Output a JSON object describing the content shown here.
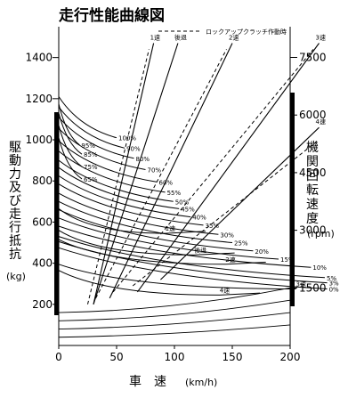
{
  "chart_data": {
    "type": "line",
    "title": "走行性能曲線図",
    "legend_label": "ロックアップクラッチ作動時",
    "xlabel": "車　速",
    "xunit": "(km/h)",
    "ylabel_left": [
      "駆",
      "動",
      "力",
      "及",
      "び",
      "走",
      "行",
      "抵",
      "抗"
    ],
    "yunit_left": "(kg)",
    "ylabel_right": [
      "機",
      "関",
      "回",
      "転",
      "速",
      "度"
    ],
    "yunit_right": "(rpm)",
    "x_ticks": [
      "0",
      "50",
      "100",
      "150",
      "200"
    ],
    "x_tick_values": [
      0,
      50,
      100,
      150,
      200
    ],
    "y_ticks_left": [
      "200",
      "400",
      "600",
      "800",
      "1000",
      "1200",
      "1400"
    ],
    "y_tick_values_left": [
      200,
      400,
      600,
      800,
      1000,
      1200,
      1400
    ],
    "y_ticks_right": [
      "1500",
      "3000",
      "4500",
      "6000",
      "7500"
    ],
    "y_tick_values_right": [
      1500,
      3000,
      4500,
      6000,
      7500
    ],
    "xlim": [
      0,
      200
    ],
    "ylim": [
      0,
      1550
    ],
    "rpm_lim": [
      0,
      8300
    ],
    "gear_lines": [
      {
        "label": "1速",
        "points": [
          [
            30,
            200
          ],
          [
            82,
            1470
          ]
        ]
      },
      {
        "label": "後退",
        "points": [
          [
            30,
            200
          ],
          [
            103,
            1470
          ]
        ]
      },
      {
        "label": "2速",
        "points": [
          [
            44,
            230
          ],
          [
            150,
            1470
          ]
        ]
      },
      {
        "label": "3速",
        "points": [
          [
            68,
            260
          ],
          [
            225,
            1470
          ]
        ]
      },
      {
        "label": "4速",
        "points": [
          [
            88,
            320
          ],
          [
            225,
            1060
          ]
        ]
      }
    ],
    "lockup_lines": [
      [
        [
          25,
          200
        ],
        [
          78,
          1440
        ]
      ],
      [
        [
          32,
          230
        ],
        [
          145,
          1440
        ]
      ],
      [
        [
          47,
          260
        ],
        [
          220,
          1440
        ]
      ],
      [
        [
          64,
          290
        ],
        [
          225,
          1000
        ]
      ]
    ],
    "throttle_labels": [
      {
        "label": "100%",
        "x": 50,
        "y": 1010
      },
      {
        "label": "95%",
        "x": 18,
        "y": 975
      },
      {
        "label": "90%",
        "x": 57,
        "y": 960
      },
      {
        "label": "85%",
        "x": 20,
        "y": 930
      },
      {
        "label": "80%",
        "x": 65,
        "y": 910
      },
      {
        "label": "75%",
        "x": 20,
        "y": 870
      },
      {
        "label": "70%",
        "x": 75,
        "y": 855
      },
      {
        "label": "65%",
        "x": 20,
        "y": 810
      },
      {
        "label": "60%",
        "x": 85,
        "y": 795
      },
      {
        "label": "55%",
        "x": 92,
        "y": 745
      },
      {
        "label": "50%",
        "x": 99,
        "y": 700
      },
      {
        "label": "45%",
        "x": 104,
        "y": 665
      },
      {
        "label": "40%",
        "x": 114,
        "y": 625
      },
      {
        "label": "35%",
        "x": 125,
        "y": 585
      },
      {
        "label": "30%",
        "x": 138,
        "y": 540
      },
      {
        "label": "25%",
        "x": 150,
        "y": 500
      },
      {
        "label": "20%",
        "x": 168,
        "y": 460
      },
      {
        "label": "15%",
        "x": 190,
        "y": 420
      },
      {
        "label": "10%",
        "x": 218,
        "y": 380
      },
      {
        "label": "5%",
        "x": 230,
        "y": 330
      },
      {
        "label": "3%",
        "x": 232,
        "y": 305
      },
      {
        "label": "0%",
        "x": 232,
        "y": 275
      }
    ],
    "resistance_labels": [
      {
        "label": "1速",
        "x": 92,
        "y": 545
      },
      {
        "label": "後退",
        "x": 117,
        "y": 440
      },
      {
        "label": "2速",
        "x": 144,
        "y": 395
      },
      {
        "label": "3速",
        "x": 205,
        "y": 275
      },
      {
        "label": "4速",
        "x": 139,
        "y": 245
      }
    ]
  }
}
